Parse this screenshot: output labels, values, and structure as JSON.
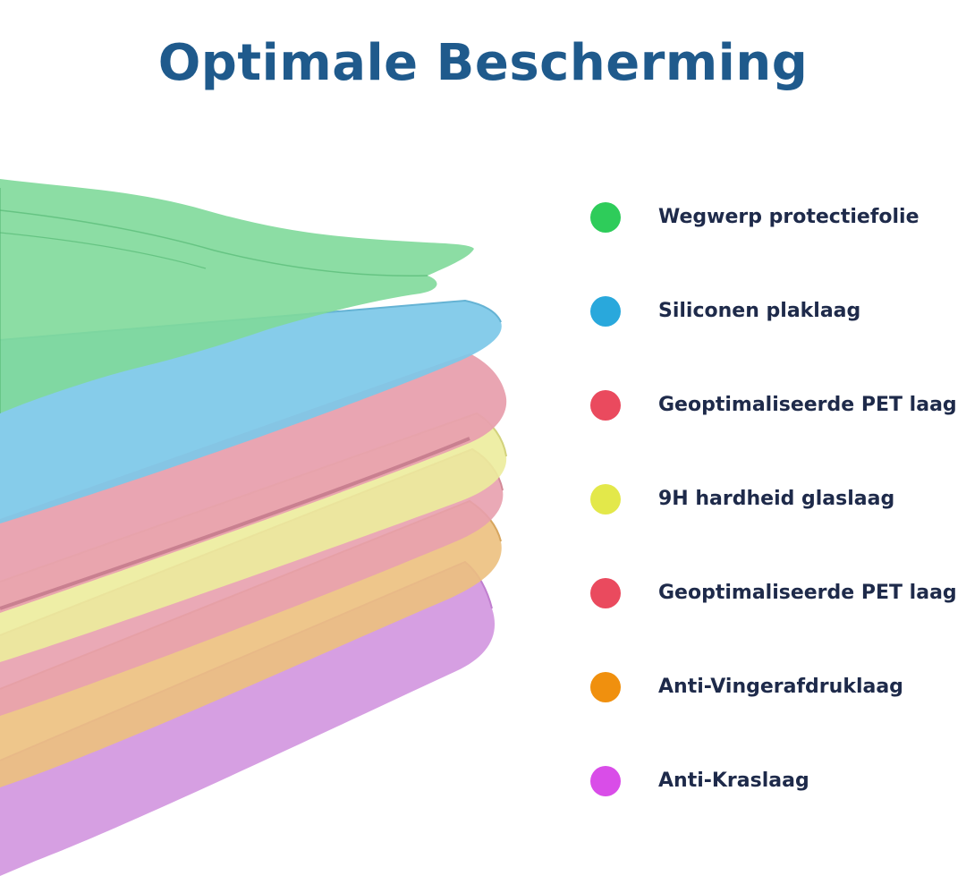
{
  "title": "Optimale Bescherming",
  "layers": [
    {
      "label": "Wegwerp protectiefolie",
      "color": "#2ecc5a",
      "icon": "green-dot"
    },
    {
      "label": "Siliconen plaklaag",
      "color": "#29a8dc",
      "icon": "blue-dot"
    },
    {
      "label": "Geoptimaliseerde PET laag",
      "color": "#ea4a5e",
      "icon": "red-dot"
    },
    {
      "label": "9H hardheid glaslaag",
      "color": "#e3e84a",
      "icon": "yellow-dot"
    },
    {
      "label": "Geoptimaliseerde PET laag",
      "color": "#ea4a5e",
      "icon": "red-dot"
    },
    {
      "label": "Anti-Vingerafdruklaag",
      "color": "#f0900e",
      "icon": "orange-dot"
    },
    {
      "label": "Anti-Kraslaag",
      "color": "#d94de8",
      "icon": "purple-dot"
    }
  ],
  "sheet_colors": {
    "green": "#7fd99a",
    "blue": "#7cc8e8",
    "pink": "#e8a0ae",
    "yellow": "#ecec9c",
    "orange": "#ecc07e",
    "purple": "#d49ae0"
  }
}
